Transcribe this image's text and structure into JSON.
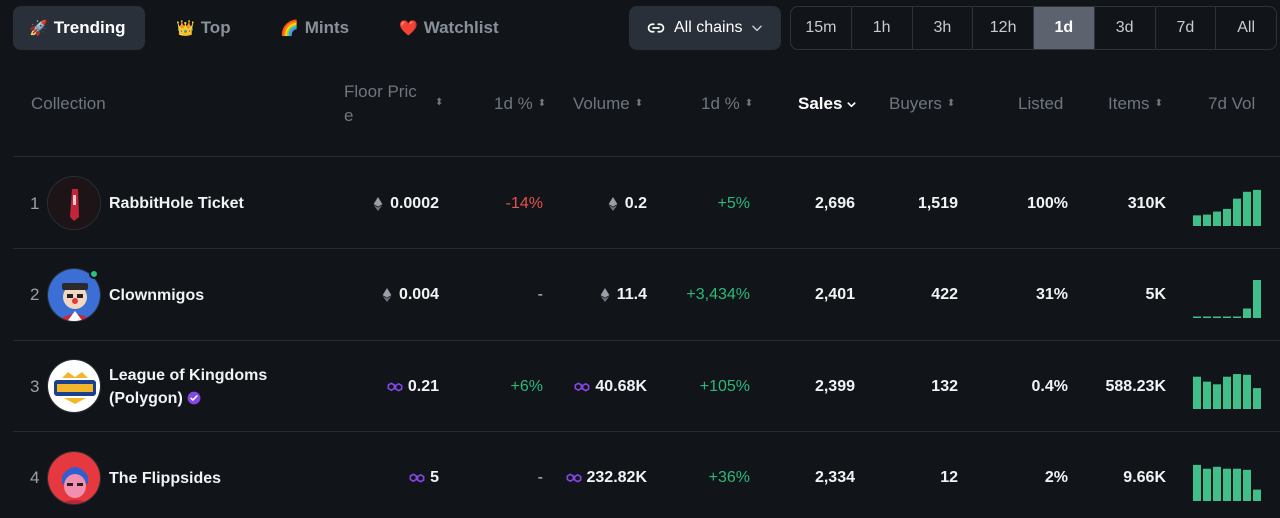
{
  "tabs": [
    {
      "emoji": "🚀",
      "label": "Trending",
      "active": true
    },
    {
      "emoji": "👑",
      "label": "Top",
      "active": false
    },
    {
      "emoji": "🌈",
      "label": "Mints",
      "active": false
    },
    {
      "emoji": "❤️",
      "label": "Watchlist",
      "active": false
    }
  ],
  "chain_filter": {
    "label": "All chains"
  },
  "time_ranges": [
    "15m",
    "1h",
    "3h",
    "12h",
    "1d",
    "3d",
    "7d",
    "All"
  ],
  "active_time_range": "1d",
  "columns": {
    "collection": "Collection",
    "floor_price": "Floor Pric\ne",
    "floor_change": "1d %",
    "volume": "Volume",
    "volume_change": "1d %",
    "sales": "Sales",
    "buyers": "Buyers",
    "listed": "Listed",
    "items": "Items",
    "vol7d": "7d Vol"
  },
  "rows": [
    {
      "rank": "1",
      "name_line1": "RabbitHole Ticket",
      "name_line2": "",
      "verified": false,
      "currency": "eth",
      "floor": "0.0002",
      "floor_change": "-14%",
      "floor_change_tone": "red",
      "volume": "0.2",
      "volume_change": "+5%",
      "sales": "2,696",
      "buyers": "1,519",
      "listed": "100%",
      "items": "310K",
      "vol7d": [
        0.28,
        0.3,
        0.38,
        0.45,
        0.72,
        0.9,
        0.95
      ],
      "avatar_colors": [
        "#1c1416",
        "#c2253a"
      ]
    },
    {
      "rank": "2",
      "name_line1": "Clownmigos",
      "name_line2": "",
      "verified": false,
      "online": true,
      "currency": "eth",
      "floor": "0.004",
      "floor_change": "-",
      "floor_change_tone": "dim",
      "volume": "11.4",
      "volume_change": "+3,434%",
      "sales": "2,401",
      "buyers": "422",
      "listed": "31%",
      "items": "5K",
      "vol7d": [
        0.02,
        0.02,
        0.02,
        0.02,
        0.02,
        0.25,
        1.0
      ],
      "avatar_colors": [
        "#3b6fd6",
        "#f4d7c1"
      ]
    },
    {
      "rank": "3",
      "name_line1": "League of Kingdoms",
      "name_line2": "(Polygon)",
      "verified": true,
      "currency": "polygon",
      "floor": "0.21",
      "floor_change": "+6%",
      "floor_change_tone": "green",
      "volume": "40.68K",
      "volume_change": "+105%",
      "sales": "2,399",
      "buyers": "132",
      "listed": "0.4%",
      "items": "588.23K",
      "vol7d": [
        0.85,
        0.72,
        0.65,
        0.85,
        0.92,
        0.9,
        0.55
      ],
      "avatar_colors": [
        "#ffffff",
        "#1b3f8f"
      ]
    },
    {
      "rank": "4",
      "name_line1": "The Flippsides",
      "name_line2": "",
      "verified": false,
      "currency": "polygon",
      "floor": "5",
      "floor_change": "-",
      "floor_change_tone": "dim",
      "volume": "232.82K",
      "volume_change": "+36%",
      "sales": "2,334",
      "buyers": "12",
      "listed": "2%",
      "items": "9.66K",
      "vol7d": [
        0.95,
        0.85,
        0.9,
        0.85,
        0.85,
        0.82,
        0.3
      ],
      "avatar_colors": [
        "#e6383f",
        "#f08fb0"
      ]
    }
  ],
  "colors": {
    "background": "#111418",
    "accent_green": "#2db87a",
    "negative_red": "#e5534b",
    "polygon_purple": "#8247e5",
    "spark_bar": "#3fbf8a"
  }
}
